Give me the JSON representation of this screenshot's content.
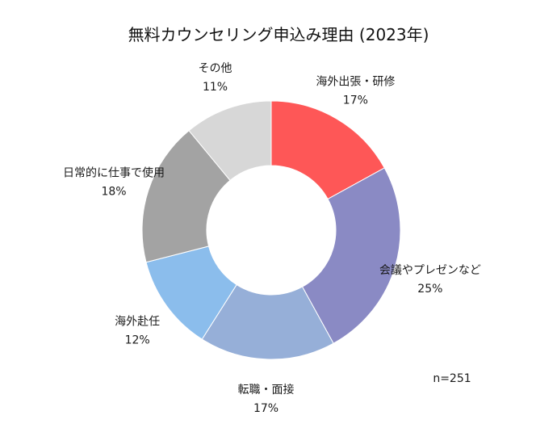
{
  "chart_data": {
    "type": "pie",
    "variant": "donut",
    "title": "無料カウンセリング申込み理由 (2023年)",
    "note": "n=251",
    "start": "12 o'clock, clockwise",
    "slices": [
      {
        "label": "海外出張・研修",
        "value": 17,
        "value_label": "17%",
        "color": "#fe5757"
      },
      {
        "label": "会議やプレゼンなど",
        "value": 25,
        "value_label": "25%",
        "color": "#8a8ac4"
      },
      {
        "label": "転職・面接",
        "value": 17,
        "value_label": "17%",
        "color": "#96afd8"
      },
      {
        "label": "海外赴任",
        "value": 12,
        "value_label": "12%",
        "color": "#8bbdec"
      },
      {
        "label": "日常的に仕事で使用",
        "value": 18,
        "value_label": "18%",
        "color": "#a3a3a3"
      },
      {
        "label": "その他",
        "value": 11,
        "value_label": "11%",
        "color": "#d7d7d7"
      }
    ]
  }
}
